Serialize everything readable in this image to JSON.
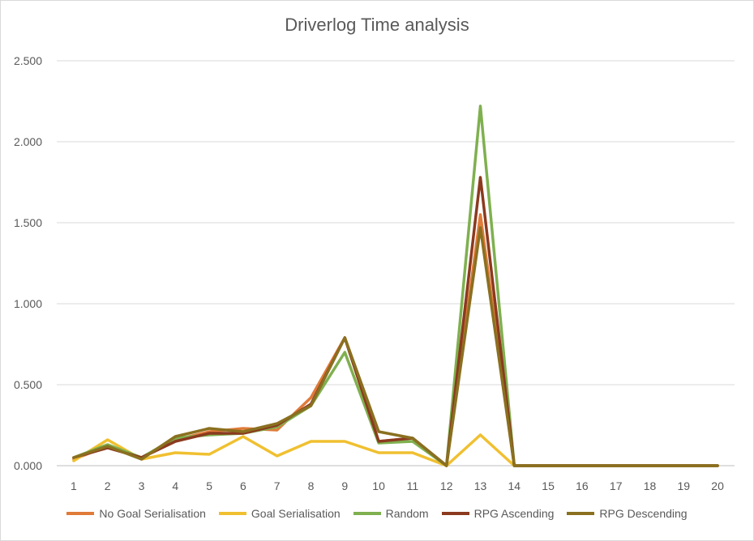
{
  "chart_data": {
    "type": "line",
    "title": "Driverlog Time analysis",
    "x": [
      "1",
      "2",
      "3",
      "4",
      "5",
      "6",
      "7",
      "8",
      "9",
      "10",
      "11",
      "12",
      "13",
      "14",
      "15",
      "16",
      "17",
      "18",
      "19",
      "20"
    ],
    "ylim": [
      0,
      2.5
    ],
    "yticks": [
      "0.000",
      "0.500",
      "1.000",
      "1.500",
      "2.000",
      "2.500"
    ],
    "ytick_values": [
      0,
      0.5,
      1.0,
      1.5,
      2.0,
      2.5
    ],
    "grid": true,
    "legend_position": "bottom",
    "series": [
      {
        "name": "No Goal Serialisation",
        "color": "#e07b39",
        "values": [
          0.04,
          0.12,
          0.05,
          0.16,
          0.21,
          0.23,
          0.22,
          0.42,
          0.79,
          0.15,
          0.17,
          0.0,
          1.55,
          0.0,
          0.0,
          0.0,
          0.0,
          0.0,
          0.0,
          0.0
        ]
      },
      {
        "name": "Goal Serialisation",
        "color": "#f0c030",
        "values": [
          0.03,
          0.16,
          0.04,
          0.08,
          0.07,
          0.18,
          0.06,
          0.15,
          0.15,
          0.08,
          0.08,
          0.0,
          0.19,
          0.0,
          0.0,
          0.0,
          0.0,
          0.0,
          0.0,
          0.0
        ]
      },
      {
        "name": "Random",
        "color": "#7fb04f",
        "values": [
          0.05,
          0.13,
          0.05,
          0.17,
          0.19,
          0.2,
          0.24,
          0.37,
          0.7,
          0.14,
          0.15,
          0.0,
          2.22,
          0.0,
          0.0,
          0.0,
          0.0,
          0.0,
          0.0,
          0.0
        ]
      },
      {
        "name": "RPG Ascending",
        "color": "#8b3a1f",
        "values": [
          0.05,
          0.11,
          0.05,
          0.15,
          0.2,
          0.2,
          0.25,
          0.38,
          0.79,
          0.15,
          0.17,
          0.0,
          1.78,
          0.0,
          0.0,
          0.0,
          0.0,
          0.0,
          0.0,
          0.0
        ]
      },
      {
        "name": "RPG Descending",
        "color": "#8a7020",
        "values": [
          0.05,
          0.12,
          0.04,
          0.18,
          0.23,
          0.21,
          0.26,
          0.37,
          0.79,
          0.21,
          0.17,
          0.0,
          1.47,
          0.0,
          0.0,
          0.0,
          0.0,
          0.0,
          0.0,
          0.0
        ]
      }
    ]
  }
}
